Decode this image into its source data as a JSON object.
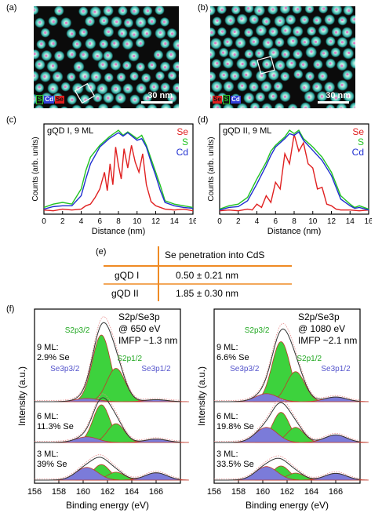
{
  "panels": {
    "a": "(a)",
    "b": "(b)",
    "c": "(c)",
    "d": "(d)",
    "e": "(e)",
    "f": "(f)"
  },
  "images": {
    "a": {
      "scale_bar": "30 nm",
      "tags": [
        {
          "text": "S",
          "color": "#2ec32e"
        },
        {
          "text": "Cd",
          "color": "#2f3fd8"
        },
        {
          "text": "Se",
          "color": "#e02020"
        }
      ]
    },
    "b": {
      "scale_bar": "30 nm",
      "tags": [
        {
          "text": "Se",
          "color": "#e02020"
        },
        {
          "text": "S",
          "color": "#2ec32e"
        },
        {
          "text": "Cd",
          "color": "#2f3fd8"
        }
      ]
    }
  },
  "table": {
    "header": "Se penetration into CdS",
    "rows": [
      {
        "name": "gQD I",
        "value": "0.50 ± 0.21 nm"
      },
      {
        "name": "gQD II",
        "value": "1.85 ± 0.30 nm"
      }
    ]
  },
  "colors": {
    "Se": "#e02020",
    "S": "#22c322",
    "Cd": "#1f2fd0",
    "orange": "#ef8a24",
    "green_fill": "#3dd23d",
    "purple_fill": "#7b7bd9"
  },
  "chart_data": [
    {
      "id": "c",
      "type": "line",
      "title": "gQD I, 9 ML",
      "xlabel": "Distance (nm)",
      "ylabel": "Counts (arb. units)",
      "xlim": [
        0,
        16
      ],
      "xticks": [
        "0",
        "2",
        "4",
        "6",
        "8",
        "10",
        "12",
        "14",
        "16"
      ],
      "legend": [
        "Se",
        "S",
        "Cd"
      ],
      "series": [
        {
          "name": "Se",
          "x": [
            0,
            1,
            2,
            3,
            4,
            4.5,
            5,
            5.5,
            6,
            6.5,
            6.8,
            7.1,
            7.4,
            7.7,
            8,
            8.3,
            8.6,
            9,
            9.4,
            9.8,
            10.2,
            10.6,
            11,
            11.5,
            12,
            13,
            14,
            15,
            16
          ],
          "y": [
            0.05,
            0.04,
            0.06,
            0.05,
            0.06,
            0.1,
            0.12,
            0.2,
            0.3,
            0.5,
            0.28,
            0.6,
            0.35,
            0.8,
            0.58,
            0.42,
            0.78,
            0.55,
            0.82,
            0.62,
            0.5,
            0.72,
            0.35,
            0.15,
            0.1,
            0.06,
            0.05,
            0.06,
            0.04
          ]
        },
        {
          "name": "S",
          "x": [
            0,
            1,
            2,
            3,
            4,
            4.5,
            5,
            6,
            7,
            8,
            8.5,
            9,
            10,
            10.5,
            11,
            11.5,
            12,
            12.5,
            13,
            14,
            15,
            16
          ],
          "y": [
            0.08,
            0.12,
            0.14,
            0.12,
            0.3,
            0.52,
            0.68,
            0.82,
            0.92,
            1.0,
            0.94,
            0.98,
            0.9,
            0.94,
            0.82,
            0.66,
            0.5,
            0.34,
            0.16,
            0.12,
            0.1,
            0.08
          ]
        },
        {
          "name": "Cd",
          "x": [
            0,
            1,
            2,
            3,
            4,
            4.5,
            5,
            6,
            7,
            8,
            8.5,
            9,
            10,
            10.5,
            11,
            11.5,
            12,
            12.5,
            13,
            14,
            15,
            16
          ],
          "y": [
            0.06,
            0.09,
            0.1,
            0.1,
            0.22,
            0.42,
            0.6,
            0.8,
            0.9,
            0.97,
            0.93,
            0.97,
            0.88,
            0.9,
            0.8,
            0.62,
            0.46,
            0.28,
            0.14,
            0.1,
            0.08,
            0.07
          ]
        }
      ]
    },
    {
      "id": "d",
      "type": "line",
      "title": "gQD II, 9 ML",
      "xlabel": "Distance (nm)",
      "ylabel": "Counts (arb. units)",
      "xlim": [
        0,
        16
      ],
      "xticks": [
        "0",
        "2",
        "4",
        "6",
        "8",
        "10",
        "12",
        "14",
        "16"
      ],
      "legend": [
        "Se",
        "S",
        "Cd"
      ],
      "series": [
        {
          "name": "Se",
          "x": [
            0,
            1,
            2,
            3,
            3.5,
            4,
            4.5,
            5,
            5.5,
            6,
            6.5,
            7,
            7.5,
            8,
            8.5,
            9,
            9.5,
            10,
            10.5,
            11,
            11.5,
            12,
            12.5,
            13,
            14,
            15,
            16
          ],
          "y": [
            0.04,
            0.05,
            0.04,
            0.06,
            0.05,
            0.12,
            0.08,
            0.22,
            0.14,
            0.38,
            0.3,
            0.72,
            0.6,
            0.95,
            0.75,
            0.85,
            0.6,
            0.55,
            0.3,
            0.32,
            0.12,
            0.1,
            0.06,
            0.05,
            0.05,
            0.04,
            0.05
          ]
        },
        {
          "name": "S",
          "x": [
            0,
            1,
            2,
            3,
            4,
            5,
            5.5,
            6,
            7,
            7.5,
            8,
            8.5,
            9,
            10,
            11,
            12,
            12.5,
            13,
            14,
            14.5,
            15,
            16
          ],
          "y": [
            0.06,
            0.1,
            0.12,
            0.2,
            0.42,
            0.62,
            0.75,
            0.82,
            0.92,
            1.0,
            0.96,
            1.0,
            0.9,
            0.8,
            0.68,
            0.5,
            0.36,
            0.22,
            0.12,
            0.08,
            0.1,
            0.06
          ]
        },
        {
          "name": "Cd",
          "x": [
            0,
            1,
            2,
            3,
            4,
            5,
            5.5,
            6,
            7,
            7.5,
            8,
            8.5,
            9,
            10,
            11,
            12,
            12.5,
            13,
            14,
            14.5,
            15,
            16
          ],
          "y": [
            0.05,
            0.08,
            0.09,
            0.16,
            0.36,
            0.58,
            0.7,
            0.8,
            0.9,
            0.96,
            0.94,
            0.98,
            0.88,
            0.76,
            0.64,
            0.46,
            0.32,
            0.18,
            0.1,
            0.07,
            0.08,
            0.05
          ]
        }
      ]
    },
    {
      "id": "f-left",
      "type": "area",
      "title": "S2p/Se3p",
      "subtitle1": "@ 650 eV",
      "subtitle2": "IMFP ~1.3 nm",
      "xlabel": "Binding energy (eV)",
      "ylabel": "Intensity (a.u.)",
      "xlim": [
        156,
        168
      ],
      "xticks": [
        "156",
        "158",
        "160",
        "162",
        "164",
        "166"
      ],
      "peak_labels": {
        "s32": "S2p3/2",
        "s12": "S2p1/2",
        "se32": "Se3p3/2",
        "se12": "Se3p1/2"
      },
      "spectra": [
        {
          "label1": "9 ML:",
          "label2": "2.9% Se",
          "peaks": [
            {
              "type": "S",
              "center": 161.5,
              "amp": 1.0,
              "width": 0.75
            },
            {
              "type": "S",
              "center": 162.7,
              "amp": 0.5,
              "width": 0.75
            },
            {
              "type": "Se",
              "center": 160.3,
              "amp": 0.05,
              "width": 0.9
            },
            {
              "type": "Se",
              "center": 166.0,
              "amp": 0.03,
              "width": 0.9
            }
          ]
        },
        {
          "label1": "6 ML:",
          "label2": "11.3% Se",
          "peaks": [
            {
              "type": "S",
              "center": 161.5,
              "amp": 1.0,
              "width": 0.7
            },
            {
              "type": "S",
              "center": 162.7,
              "amp": 0.5,
              "width": 0.7
            },
            {
              "type": "Se",
              "center": 160.3,
              "amp": 0.15,
              "width": 0.9
            },
            {
              "type": "Se",
              "center": 166.0,
              "amp": 0.09,
              "width": 0.9
            }
          ]
        },
        {
          "label1": "3 ML:",
          "label2": "39% Se",
          "peaks": [
            {
              "type": "S",
              "center": 161.5,
              "amp": 0.55,
              "width": 0.7
            },
            {
              "type": "S",
              "center": 162.7,
              "amp": 0.28,
              "width": 0.7
            },
            {
              "type": "Se",
              "center": 160.3,
              "amp": 0.45,
              "width": 0.9
            },
            {
              "type": "Se",
              "center": 166.0,
              "amp": 0.26,
              "width": 0.9
            }
          ]
        }
      ]
    },
    {
      "id": "f-right",
      "type": "area",
      "title": "S2p/Se3p",
      "subtitle1": "@ 1080 eV",
      "subtitle2": "IMFP ~2.1 nm",
      "xlabel": "Binding energy (eV)",
      "ylabel": "Intensity (a.u.)",
      "xlim": [
        156,
        168
      ],
      "xticks": [
        "156",
        "158",
        "160",
        "162",
        "164",
        "166"
      ],
      "peak_labels": {
        "s32": "S2p3/2",
        "s12": "S2p1/2",
        "se32": "Se3p3/2",
        "se12": "Se3p1/2"
      },
      "spectra": [
        {
          "label1": "9 ML:",
          "label2": "6.6% Se",
          "peaks": [
            {
              "type": "S",
              "center": 161.5,
              "amp": 0.9,
              "width": 0.75
            },
            {
              "type": "S",
              "center": 162.7,
              "amp": 0.45,
              "width": 0.75
            },
            {
              "type": "Se",
              "center": 160.3,
              "amp": 0.12,
              "width": 0.9
            },
            {
              "type": "Se",
              "center": 166.0,
              "amp": 0.07,
              "width": 0.9
            }
          ]
        },
        {
          "label1": "6 ML:",
          "label2": "19.8% Se",
          "peaks": [
            {
              "type": "S",
              "center": 161.5,
              "amp": 0.8,
              "width": 0.7
            },
            {
              "type": "S",
              "center": 162.7,
              "amp": 0.4,
              "width": 0.7
            },
            {
              "type": "Se",
              "center": 160.3,
              "amp": 0.4,
              "width": 0.9
            },
            {
              "type": "Se",
              "center": 166.0,
              "amp": 0.2,
              "width": 0.9
            }
          ]
        },
        {
          "label1": "3 ML:",
          "label2": "33.5% Se",
          "peaks": [
            {
              "type": "S",
              "center": 161.5,
              "amp": 0.5,
              "width": 0.7
            },
            {
              "type": "S",
              "center": 162.7,
              "amp": 0.25,
              "width": 0.7
            },
            {
              "type": "Se",
              "center": 160.3,
              "amp": 0.48,
              "width": 0.9
            },
            {
              "type": "Se",
              "center": 166.0,
              "amp": 0.24,
              "width": 0.9
            }
          ]
        }
      ]
    }
  ]
}
